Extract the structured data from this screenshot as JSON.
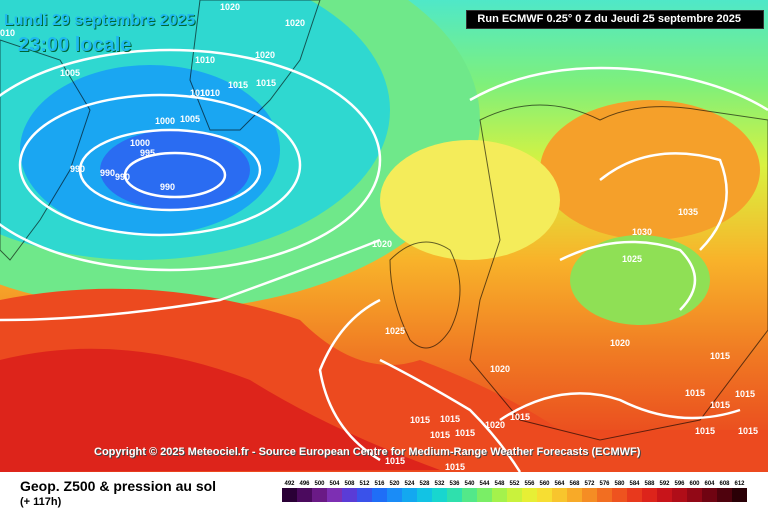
{
  "map": {
    "date": "Lundi 29 septembre 2025",
    "time": "23:00 locale",
    "run": "Run ECMWF 0.25° 0 Z du Jeudi 25 septembre 2025",
    "copyright": "Copyright © 2025 Meteociel.fr - Source European Centre for Medium-Range Weather Forecasts (ECMWF)",
    "product": "Geop. Z500 & pression au sol",
    "lead_time": "(+ 117h)",
    "isobar_labels": [
      "1020",
      "010",
      "1005",
      "1010",
      "1010",
      "1020",
      "1020",
      "1015",
      "1015",
      "1010",
      "1000",
      "1005",
      "1000",
      "995",
      "990",
      "990",
      "990",
      "990",
      "1035",
      "1030",
      "1025",
      "1020",
      "1025",
      "1020",
      "1020",
      "1020",
      "1015",
      "1015",
      "1015",
      "1015",
      "1015",
      "1015",
      "1015",
      "1015",
      "1015",
      "1015",
      "1015",
      "1015",
      "1015"
    ]
  },
  "scale": {
    "values": [
      "492",
      "496",
      "500",
      "504",
      "508",
      "512",
      "516",
      "520",
      "524",
      "528",
      "532",
      "536",
      "540",
      "544",
      "548",
      "552",
      "556",
      "560",
      "564",
      "568",
      "572",
      "576",
      "580",
      "584",
      "588",
      "592",
      "596",
      "600",
      "604",
      "608",
      "612"
    ],
    "colors": [
      "#2a0036",
      "#4b0a5e",
      "#6a1a86",
      "#7d2fb3",
      "#5a3cd6",
      "#3a52ea",
      "#1f6ef7",
      "#1a8cf7",
      "#13a8f0",
      "#12c3e4",
      "#18d6cf",
      "#2fe0ad",
      "#53e889",
      "#7aee66",
      "#a4f24c",
      "#c9f23c",
      "#e7ef35",
      "#f7de32",
      "#f8c52d",
      "#f8aa28",
      "#f58d24",
      "#f26e21",
      "#ee531f",
      "#e8391d",
      "#dd241b",
      "#c8141a",
      "#b00d18",
      "#920816",
      "#700412",
      "#4f020d",
      "#2a0006"
    ]
  }
}
